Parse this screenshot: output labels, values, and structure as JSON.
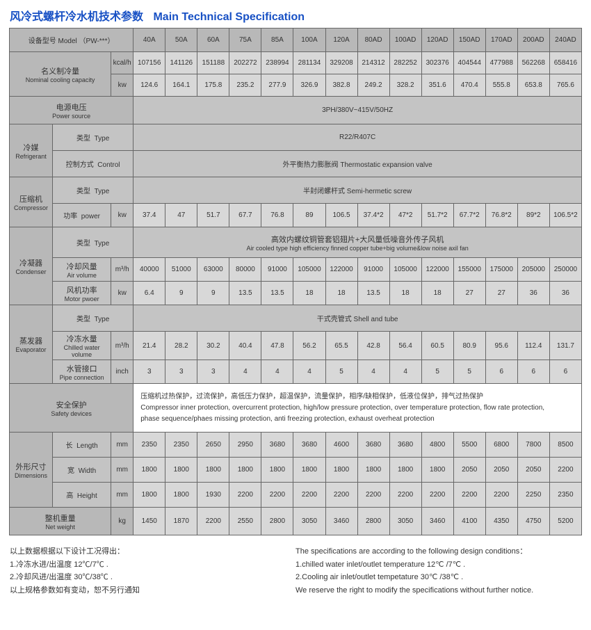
{
  "title": {
    "cn": "风冷式螺杆冷水机技术参数",
    "en": "Main Technical Specification"
  },
  "modelLabel": "设备型号 Model （PW-***）",
  "models": [
    "40A",
    "50A",
    "60A",
    "75A",
    "85A",
    "100A",
    "120A",
    "80AD",
    "100AD",
    "120AD",
    "150AD",
    "170AD",
    "200AD",
    "240AD"
  ],
  "rows": {
    "nominal": {
      "cn": "名义制冷量",
      "en": "Nominal cooling capacity"
    },
    "kcal": {
      "unit": "kcal/h",
      "v": [
        "107156",
        "141126",
        "151188",
        "202272",
        "238994",
        "281134",
        "329208",
        "214312",
        "282252",
        "302376",
        "404544",
        "477988",
        "562268",
        "658416"
      ]
    },
    "kw": {
      "unit": "kw",
      "v": [
        "124.6",
        "164.1",
        "175.8",
        "235.2",
        "277.9",
        "326.9",
        "382.8",
        "249.2",
        "328.2",
        "351.6",
        "470.4",
        "555.8",
        "653.8",
        "765.6"
      ]
    },
    "power": {
      "cn": "电源电压",
      "en": "Power source",
      "val": "3PH/380V~415V/50HZ"
    },
    "refrig": {
      "cn": "冷媒",
      "en": "Refrigerant"
    },
    "refrigType": {
      "cn": "类型",
      "en": "Type",
      "val": "R22/R407C"
    },
    "refrigCtrl": {
      "cn": "控制方式",
      "en": "Control",
      "val": "外平衡热力膨胀阀  Thermostatic expansion valve"
    },
    "comp": {
      "cn": "压缩机",
      "en": "Compressor"
    },
    "compType": {
      "cn": "类型",
      "en": "Type",
      "val": "半封闭螺杆式  Semi-hermetic screw"
    },
    "compPower": {
      "cn": "功率",
      "en": "power",
      "unit": "kw",
      "v": [
        "37.4",
        "47",
        "51.7",
        "67.7",
        "76.8",
        "89",
        "106.5",
        "37.4*2",
        "47*2",
        "51.7*2",
        "67.7*2",
        "76.8*2",
        "89*2",
        "106.5*2"
      ]
    },
    "cond": {
      "cn": "冷凝器",
      "en": "Condenser"
    },
    "condType": {
      "cn": "类型",
      "en": "Type",
      "cn2": "高效内螺纹铜管套铝翅片+大风量低噪音外传子风机",
      "en2": "Air cooled type high efficiency finned copper tube+big volume&low noise axil fan"
    },
    "airVol": {
      "cn": "冷却风量",
      "en": "Air volume",
      "unit": "m³/h",
      "v": [
        "40000",
        "51000",
        "63000",
        "80000",
        "91000",
        "105000",
        "122000",
        "91000",
        "105000",
        "122000",
        "155000",
        "175000",
        "205000",
        "250000"
      ]
    },
    "motorP": {
      "cn": "风机功率",
      "en": "Motor pwoer",
      "unit": "kw",
      "v": [
        "6.4",
        "9",
        "9",
        "13.5",
        "13.5",
        "18",
        "18",
        "13.5",
        "18",
        "18",
        "27",
        "27",
        "36",
        "36"
      ]
    },
    "evap": {
      "cn": "蒸发器",
      "en": "Evaporator"
    },
    "evapType": {
      "cn": "类型",
      "en": "Type",
      "val": "干式壳管式  Shell and tube"
    },
    "chilled": {
      "cn": "冷冻水量",
      "en": "Chilled water volume",
      "unit": "m³/h",
      "v": [
        "21.4",
        "28.2",
        "30.2",
        "40.4",
        "47.8",
        "56.2",
        "65.5",
        "42.8",
        "56.4",
        "60.5",
        "80.9",
        "95.6",
        "112.4",
        "131.7"
      ]
    },
    "pipe": {
      "cn": "水管接口",
      "en": "Pipe connection",
      "unit": "inch",
      "v": [
        "3",
        "3",
        "3",
        "4",
        "4",
        "4",
        "5",
        "4",
        "4",
        "5",
        "5",
        "6",
        "6",
        "6"
      ]
    },
    "safety": {
      "cn": "安全保护",
      "en": "Safety devices",
      "l1": "压缩机过热保护，过流保护，高低压力保护，超温保护，流量保护，相序/缺相保护，低液位保护，排气过热保护",
      "l2": "Compressor inner protection, overcurrent protection,    high/low pressure protection, over temperature protection, flow rate protection,",
      "l3": "phase sequence/phaes missing protection,  anti freezing protection, exhaust overheat protection"
    },
    "dim": {
      "cn": "外形尺寸",
      "en": "Dimensions"
    },
    "length": {
      "cn": "长",
      "en": "Length",
      "unit": "mm",
      "v": [
        "2350",
        "2350",
        "2650",
        "2950",
        "3680",
        "3680",
        "4600",
        "3680",
        "3680",
        "4800",
        "5500",
        "6800",
        "7800",
        "8500"
      ]
    },
    "width": {
      "cn": "宽",
      "en": "Width",
      "unit": "mm",
      "v": [
        "1800",
        "1800",
        "1800",
        "1800",
        "1800",
        "1800",
        "1800",
        "1800",
        "1800",
        "1800",
        "2050",
        "2050",
        "2050",
        "2200"
      ]
    },
    "height": {
      "cn": "高",
      "en": "Height",
      "unit": "mm",
      "v": [
        "1800",
        "1800",
        "1930",
        "2200",
        "2200",
        "2200",
        "2200",
        "2200",
        "2200",
        "2200",
        "2200",
        "2200",
        "2250",
        "2350"
      ]
    },
    "weight": {
      "cn": "整机重量",
      "en": "Net weight",
      "unit": "kg",
      "v": [
        "1450",
        "1870",
        "2200",
        "2550",
        "2800",
        "3050",
        "3460",
        "2800",
        "3050",
        "3460",
        "4100",
        "4350",
        "4750",
        "5200"
      ]
    }
  },
  "footer": {
    "left": [
      "以上数据根据以下设计工况得出：",
      "1.冷冻水进/出温度 12℃/7℃ .",
      "2.冷却风进/出温度 30℃/38℃ .",
      "以上规格参数如有变动，恕不另行通知"
    ],
    "right": [
      "The specifications are according to the following design conditions：",
      "1.chilled water inlet/outlet temperature 12℃ /7℃ .",
      "2.Cooling  air inlet/outlet tempetature 30℃ /38℃ .",
      "We reserve the right to modify the specifications without further notice."
    ]
  },
  "cols": {
    "cat": 62,
    "sub": 84,
    "unit": 32,
    "data": 46
  }
}
